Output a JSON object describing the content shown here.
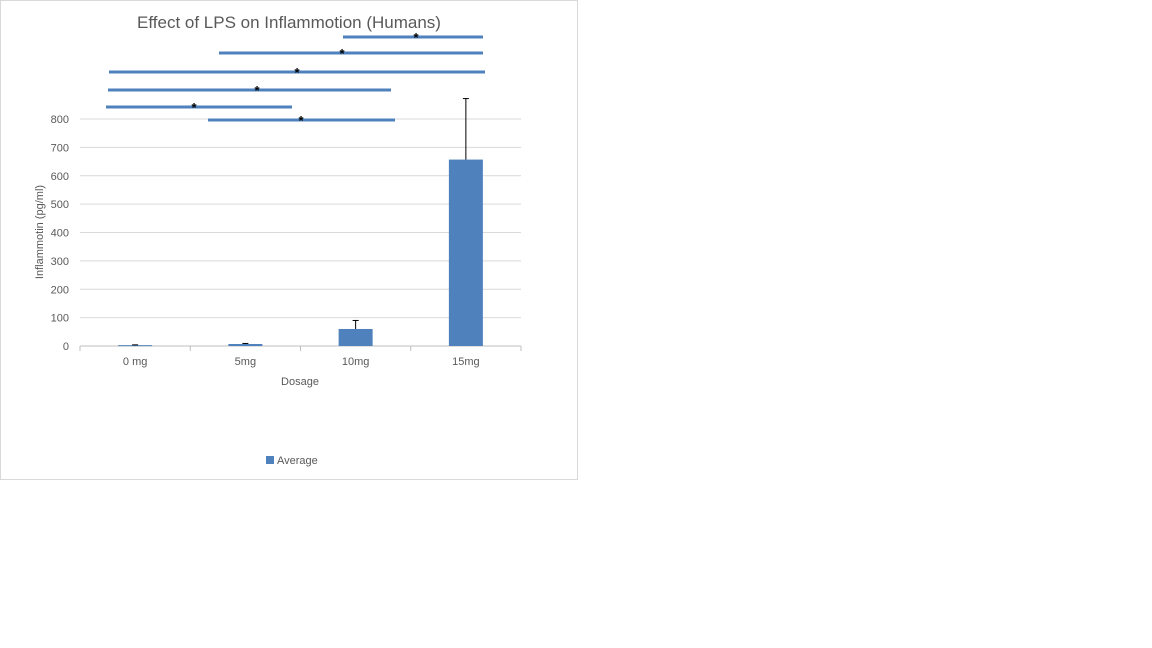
{
  "chart_data": {
    "type": "bar",
    "title": "Effect of LPS on Inflammotion (Humans)",
    "xlabel": "Dosage",
    "ylabel": "Inflammotin (pg/ml)",
    "categories": [
      "0 mg",
      "5mg",
      "10mg",
      "15mg"
    ],
    "series": [
      {
        "name": "Average",
        "color": "#4f81bd",
        "values": [
          3,
          7,
          60,
          657
        ],
        "error_plus": [
          1,
          2,
          30,
          215
        ]
      }
    ],
    "ylim": [
      0,
      800
    ],
    "yticks": [
      0,
      100,
      200,
      300,
      400,
      500,
      600,
      700,
      800
    ],
    "grid": true,
    "legend_position": "bottom",
    "significance_bars": [
      {
        "from": "10mg",
        "to": "15mg",
        "label": "*"
      },
      {
        "from": "5mg",
        "to": "15mg",
        "label": "*"
      },
      {
        "from": "0 mg",
        "to": "15mg",
        "label": "*"
      },
      {
        "from": "0 mg",
        "to": "10mg",
        "label": "*"
      },
      {
        "from": "0 mg",
        "to": "5mg",
        "label": "*"
      },
      {
        "from": "5mg",
        "to": "10mg",
        "label": "*"
      }
    ]
  }
}
